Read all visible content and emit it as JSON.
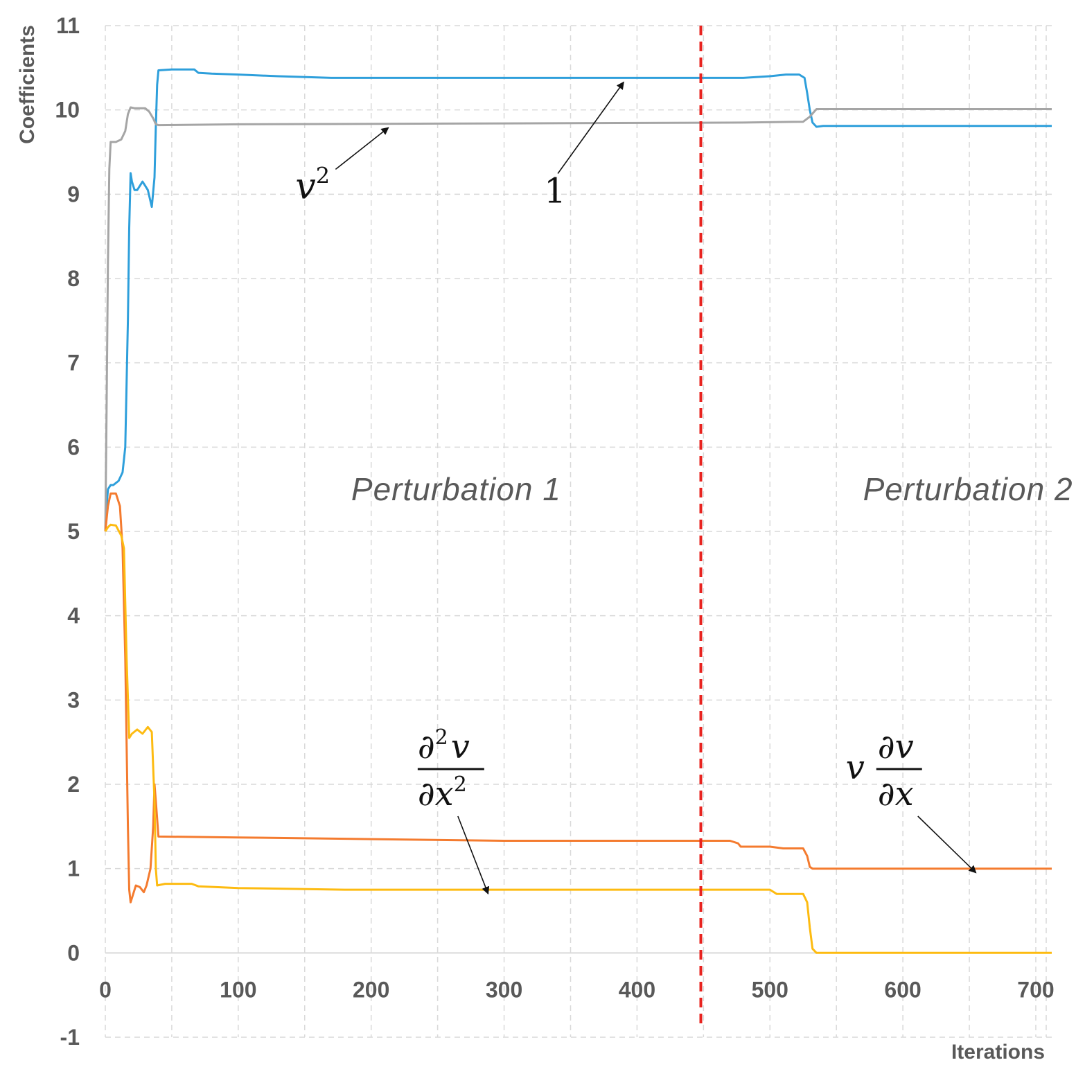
{
  "chart_data": {
    "type": "line",
    "xlabel": "Iterations",
    "ylabel": "Coefficients",
    "xlim": [
      0,
      712
    ],
    "ylim": [
      -1,
      11
    ],
    "xticks": [
      0,
      100,
      200,
      300,
      400,
      500,
      600,
      700
    ],
    "yticks": [
      -1,
      0,
      1,
      2,
      3,
      4,
      5,
      6,
      7,
      8,
      9,
      10,
      11
    ],
    "xgrid_step": 50,
    "grid": true,
    "vline": {
      "x": 448,
      "color": "#e8231f",
      "style": "dashed"
    },
    "regions": [
      {
        "label": "Perturbation 1",
        "x": 185,
        "y": 5.5
      },
      {
        "label": "Perturbation 2",
        "x": 570,
        "y": 5.5
      }
    ],
    "series": [
      {
        "name": "1",
        "color": "#2e9fdb",
        "points": [
          [
            0,
            5
          ],
          [
            1,
            5.3
          ],
          [
            2,
            5.5
          ],
          [
            4,
            5.55
          ],
          [
            6,
            5.55
          ],
          [
            10,
            5.6
          ],
          [
            13,
            5.7
          ],
          [
            15,
            6.0
          ],
          [
            17,
            7.5
          ],
          [
            18,
            8.6
          ],
          [
            19,
            9.25
          ],
          [
            20,
            9.15
          ],
          [
            22,
            9.05
          ],
          [
            24,
            9.05
          ],
          [
            26,
            9.1
          ],
          [
            28,
            9.15
          ],
          [
            30,
            9.1
          ],
          [
            32,
            9.05
          ],
          [
            35,
            8.85
          ],
          [
            37,
            9.2
          ],
          [
            38,
            9.8
          ],
          [
            39,
            10.3
          ],
          [
            40,
            10.47
          ],
          [
            50,
            10.48
          ],
          [
            67,
            10.48
          ],
          [
            70,
            10.44
          ],
          [
            80,
            10.43
          ],
          [
            100,
            10.42
          ],
          [
            130,
            10.4
          ],
          [
            170,
            10.38
          ],
          [
            300,
            10.38
          ],
          [
            480,
            10.38
          ],
          [
            500,
            10.4
          ],
          [
            512,
            10.42
          ],
          [
            522,
            10.42
          ],
          [
            526,
            10.38
          ],
          [
            528,
            10.2
          ],
          [
            530,
            10.0
          ],
          [
            532,
            9.85
          ],
          [
            535,
            9.8
          ],
          [
            540,
            9.81
          ],
          [
            712,
            9.81
          ]
        ]
      },
      {
        "name": "v^2",
        "color": "#a5a5a5",
        "points": [
          [
            0,
            5
          ],
          [
            1,
            6.5
          ],
          [
            2,
            8.2
          ],
          [
            3,
            9.3
          ],
          [
            4,
            9.62
          ],
          [
            8,
            9.62
          ],
          [
            12,
            9.65
          ],
          [
            15,
            9.75
          ],
          [
            17,
            9.95
          ],
          [
            19,
            10.03
          ],
          [
            22,
            10.02
          ],
          [
            30,
            10.02
          ],
          [
            33,
            9.98
          ],
          [
            36,
            9.9
          ],
          [
            38,
            9.83
          ],
          [
            40,
            9.82
          ],
          [
            100,
            9.83
          ],
          [
            300,
            9.84
          ],
          [
            480,
            9.85
          ],
          [
            525,
            9.86
          ],
          [
            530,
            9.92
          ],
          [
            535,
            10.01
          ],
          [
            712,
            10.01
          ]
        ]
      },
      {
        "name": "v dv/dx",
        "color": "#f47b2f",
        "points": [
          [
            0,
            5
          ],
          [
            2,
            5.3
          ],
          [
            4,
            5.45
          ],
          [
            8,
            5.45
          ],
          [
            11,
            5.3
          ],
          [
            13,
            4.8
          ],
          [
            15,
            3.5
          ],
          [
            17,
            1.5
          ],
          [
            18,
            0.75
          ],
          [
            19,
            0.6
          ],
          [
            21,
            0.7
          ],
          [
            23,
            0.8
          ],
          [
            26,
            0.78
          ],
          [
            29,
            0.72
          ],
          [
            31,
            0.8
          ],
          [
            34,
            1.0
          ],
          [
            36,
            1.5
          ],
          [
            37,
            2.0
          ],
          [
            38,
            1.8
          ],
          [
            40,
            1.38
          ],
          [
            100,
            1.37
          ],
          [
            200,
            1.35
          ],
          [
            300,
            1.33
          ],
          [
            470,
            1.33
          ],
          [
            476,
            1.3
          ],
          [
            478,
            1.26
          ],
          [
            500,
            1.26
          ],
          [
            510,
            1.24
          ],
          [
            525,
            1.24
          ],
          [
            528,
            1.15
          ],
          [
            530,
            1.02
          ],
          [
            532,
            1.0
          ],
          [
            712,
            1.0
          ]
        ]
      },
      {
        "name": "d2v/dx2",
        "color": "#fdbb11",
        "points": [
          [
            0,
            5
          ],
          [
            2,
            5.05
          ],
          [
            4,
            5.08
          ],
          [
            8,
            5.07
          ],
          [
            12,
            4.95
          ],
          [
            14,
            4.8
          ],
          [
            16,
            3.5
          ],
          [
            18,
            2.55
          ],
          [
            20,
            2.6
          ],
          [
            24,
            2.65
          ],
          [
            28,
            2.6
          ],
          [
            32,
            2.68
          ],
          [
            35,
            2.62
          ],
          [
            37,
            1.8
          ],
          [
            38,
            1.0
          ],
          [
            39,
            0.8
          ],
          [
            45,
            0.82
          ],
          [
            65,
            0.82
          ],
          [
            70,
            0.79
          ],
          [
            100,
            0.77
          ],
          [
            180,
            0.75
          ],
          [
            500,
            0.75
          ],
          [
            505,
            0.7
          ],
          [
            525,
            0.7
          ],
          [
            528,
            0.6
          ],
          [
            530,
            0.3
          ],
          [
            532,
            0.05
          ],
          [
            535,
            0.0
          ],
          [
            712,
            0.0
          ]
        ]
      }
    ],
    "annotations": [
      {
        "id": "ann-one",
        "label": "1",
        "series": "1",
        "text_x": 330,
        "text_y": 8.9,
        "arrow_to": [
          390,
          10.38
        ]
      },
      {
        "id": "ann-v2",
        "label": "v",
        "superscript": "2",
        "series": "v^2",
        "text_x": 143,
        "text_y": 8.95,
        "arrow_to": [
          213,
          9.84
        ]
      },
      {
        "id": "ann-d2v",
        "numerator_sym": "∂",
        "numerator_exp": "2",
        "numerator_var": "v",
        "denominator_sym": "∂",
        "denominator_var": "x",
        "denominator_exp": "2",
        "series": "d2v/dx2",
        "text_x": 235,
        "text_y": 2.0,
        "arrow_to": [
          288,
          0.75
        ]
      },
      {
        "id": "ann-vdv",
        "prefix": "v",
        "numerator_sym": "∂",
        "numerator_var": "v",
        "denominator_sym": "∂",
        "denominator_var": "x",
        "series": "v dv/dx",
        "text_x": 580,
        "text_y": 2.0,
        "arrow_to": [
          655,
          1.0
        ]
      }
    ]
  }
}
